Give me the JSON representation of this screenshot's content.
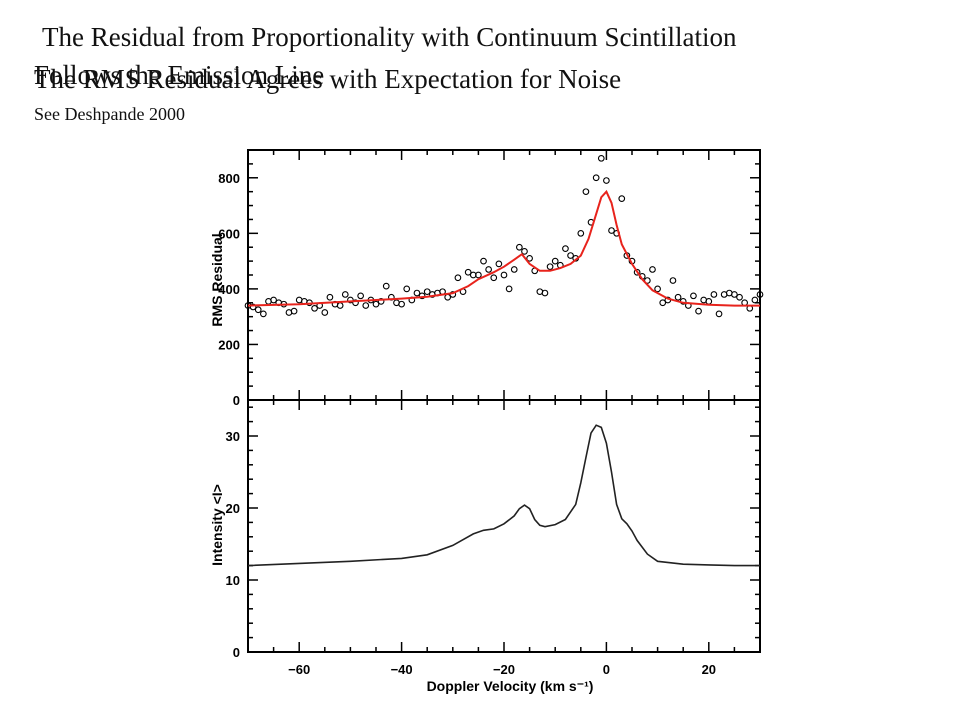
{
  "slide": {
    "title_line1": "The Residual from Proportionality with Continuum Scintillation",
    "title_line2": "Follows the Emission Line",
    "title_overlay": "The RMS Residual Agrees with Expectation for Noise",
    "subtitle": "See Deshpande 2000"
  },
  "chart_data": [
    {
      "type": "scatter",
      "panel": "top",
      "ylabel": "RMS Residual",
      "xlim": [
        -70,
        30
      ],
      "ylim": [
        0,
        900
      ],
      "yticks": [
        0,
        200,
        400,
        600,
        800
      ],
      "series": [
        {
          "kind": "points",
          "color": "#000000",
          "x": [
            -70,
            -69,
            -68,
            -67,
            -66,
            -65,
            -64,
            -63,
            -62,
            -61,
            -60,
            -59,
            -58,
            -57,
            -56,
            -55,
            -54,
            -53,
            -52,
            -51,
            -50,
            -49,
            -48,
            -47,
            -46,
            -45,
            -44,
            -43,
            -42,
            -41,
            -40,
            -39,
            -38,
            -37,
            -36,
            -35,
            -34,
            -33,
            -32,
            -31,
            -30,
            -29,
            -28,
            -27,
            -26,
            -25,
            -24,
            -23,
            -22,
            -21,
            -20,
            -19,
            -18,
            -17,
            -16,
            -15,
            -14,
            -13,
            -12,
            -11,
            -10,
            -9,
            -8,
            -7,
            -6,
            -5,
            -4,
            -3,
            -2,
            -1,
            0,
            1,
            2,
            3,
            4,
            5,
            6,
            7,
            8,
            9,
            10,
            11,
            12,
            13,
            14,
            15,
            16,
            17,
            18,
            19,
            20,
            21,
            22,
            23,
            24,
            25,
            26,
            27,
            28,
            29,
            30
          ],
          "y": [
            340,
            335,
            325,
            310,
            355,
            360,
            350,
            345,
            315,
            320,
            360,
            355,
            350,
            330,
            340,
            315,
            370,
            345,
            340,
            380,
            360,
            350,
            375,
            340,
            360,
            345,
            355,
            410,
            370,
            350,
            345,
            400,
            360,
            385,
            375,
            390,
            380,
            385,
            390,
            370,
            380,
            440,
            390,
            460,
            450,
            450,
            500,
            470,
            440,
            490,
            450,
            400,
            470,
            550,
            535,
            510,
            465,
            390,
            385,
            480,
            500,
            485,
            545,
            520,
            510,
            600,
            750,
            640,
            800,
            870,
            790,
            610,
            600,
            725,
            520,
            500,
            460,
            445,
            430,
            470,
            400,
            350,
            360,
            430,
            370,
            355,
            340,
            375,
            320,
            360,
            355,
            380,
            310,
            380,
            385,
            380,
            370,
            350,
            330,
            360,
            380
          ]
        },
        {
          "kind": "fit-line",
          "color": "#e8231c",
          "x": [
            -70,
            -60,
            -50,
            -45,
            -40,
            -35,
            -30,
            -27,
            -25,
            -22,
            -20,
            -18,
            -16.5,
            -15,
            -13,
            -11,
            -9,
            -7,
            -5,
            -3.5,
            -2,
            -1,
            0,
            1,
            2,
            3,
            5,
            7,
            9,
            12,
            15,
            20,
            25,
            30
          ],
          "y": [
            340,
            345,
            355,
            360,
            365,
            372,
            385,
            410,
            435,
            460,
            480,
            505,
            525,
            490,
            465,
            465,
            475,
            490,
            520,
            580,
            670,
            730,
            750,
            710,
            630,
            560,
            490,
            435,
            395,
            365,
            350,
            343,
            340,
            340
          ]
        }
      ]
    },
    {
      "type": "line",
      "panel": "bottom",
      "xlabel": "Doppler Velocity (km s⁻¹)",
      "ylabel": "Intensity <I>",
      "xlim": [
        -70,
        30
      ],
      "ylim": [
        0,
        35
      ],
      "xticks": [
        -60,
        -40,
        -20,
        0,
        20
      ],
      "yticks": [
        0,
        10,
        20,
        30
      ],
      "series": [
        {
          "kind": "line",
          "color": "#222222",
          "x": [
            -70,
            -60,
            -50,
            -40,
            -35,
            -30,
            -28,
            -26,
            -24,
            -22,
            -20,
            -18,
            -17,
            -16,
            -15,
            -14,
            -13,
            -12,
            -10,
            -8,
            -6,
            -5,
            -4,
            -3,
            -2,
            -1,
            0,
            1,
            2,
            3,
            4,
            5,
            6,
            8,
            10,
            15,
            20,
            25,
            30
          ],
          "y": [
            12,
            12.3,
            12.6,
            13,
            13.5,
            14.8,
            15.6,
            16.4,
            16.9,
            17.1,
            17.8,
            18.9,
            19.9,
            20.4,
            19.9,
            18.4,
            17.6,
            17.4,
            17.7,
            18.4,
            20.5,
            23.5,
            27,
            30.4,
            31.5,
            31.2,
            29,
            25,
            20.5,
            18.5,
            17.8,
            16.8,
            15.5,
            13.6,
            12.6,
            12.2,
            12.1,
            12,
            12
          ]
        }
      ]
    }
  ]
}
